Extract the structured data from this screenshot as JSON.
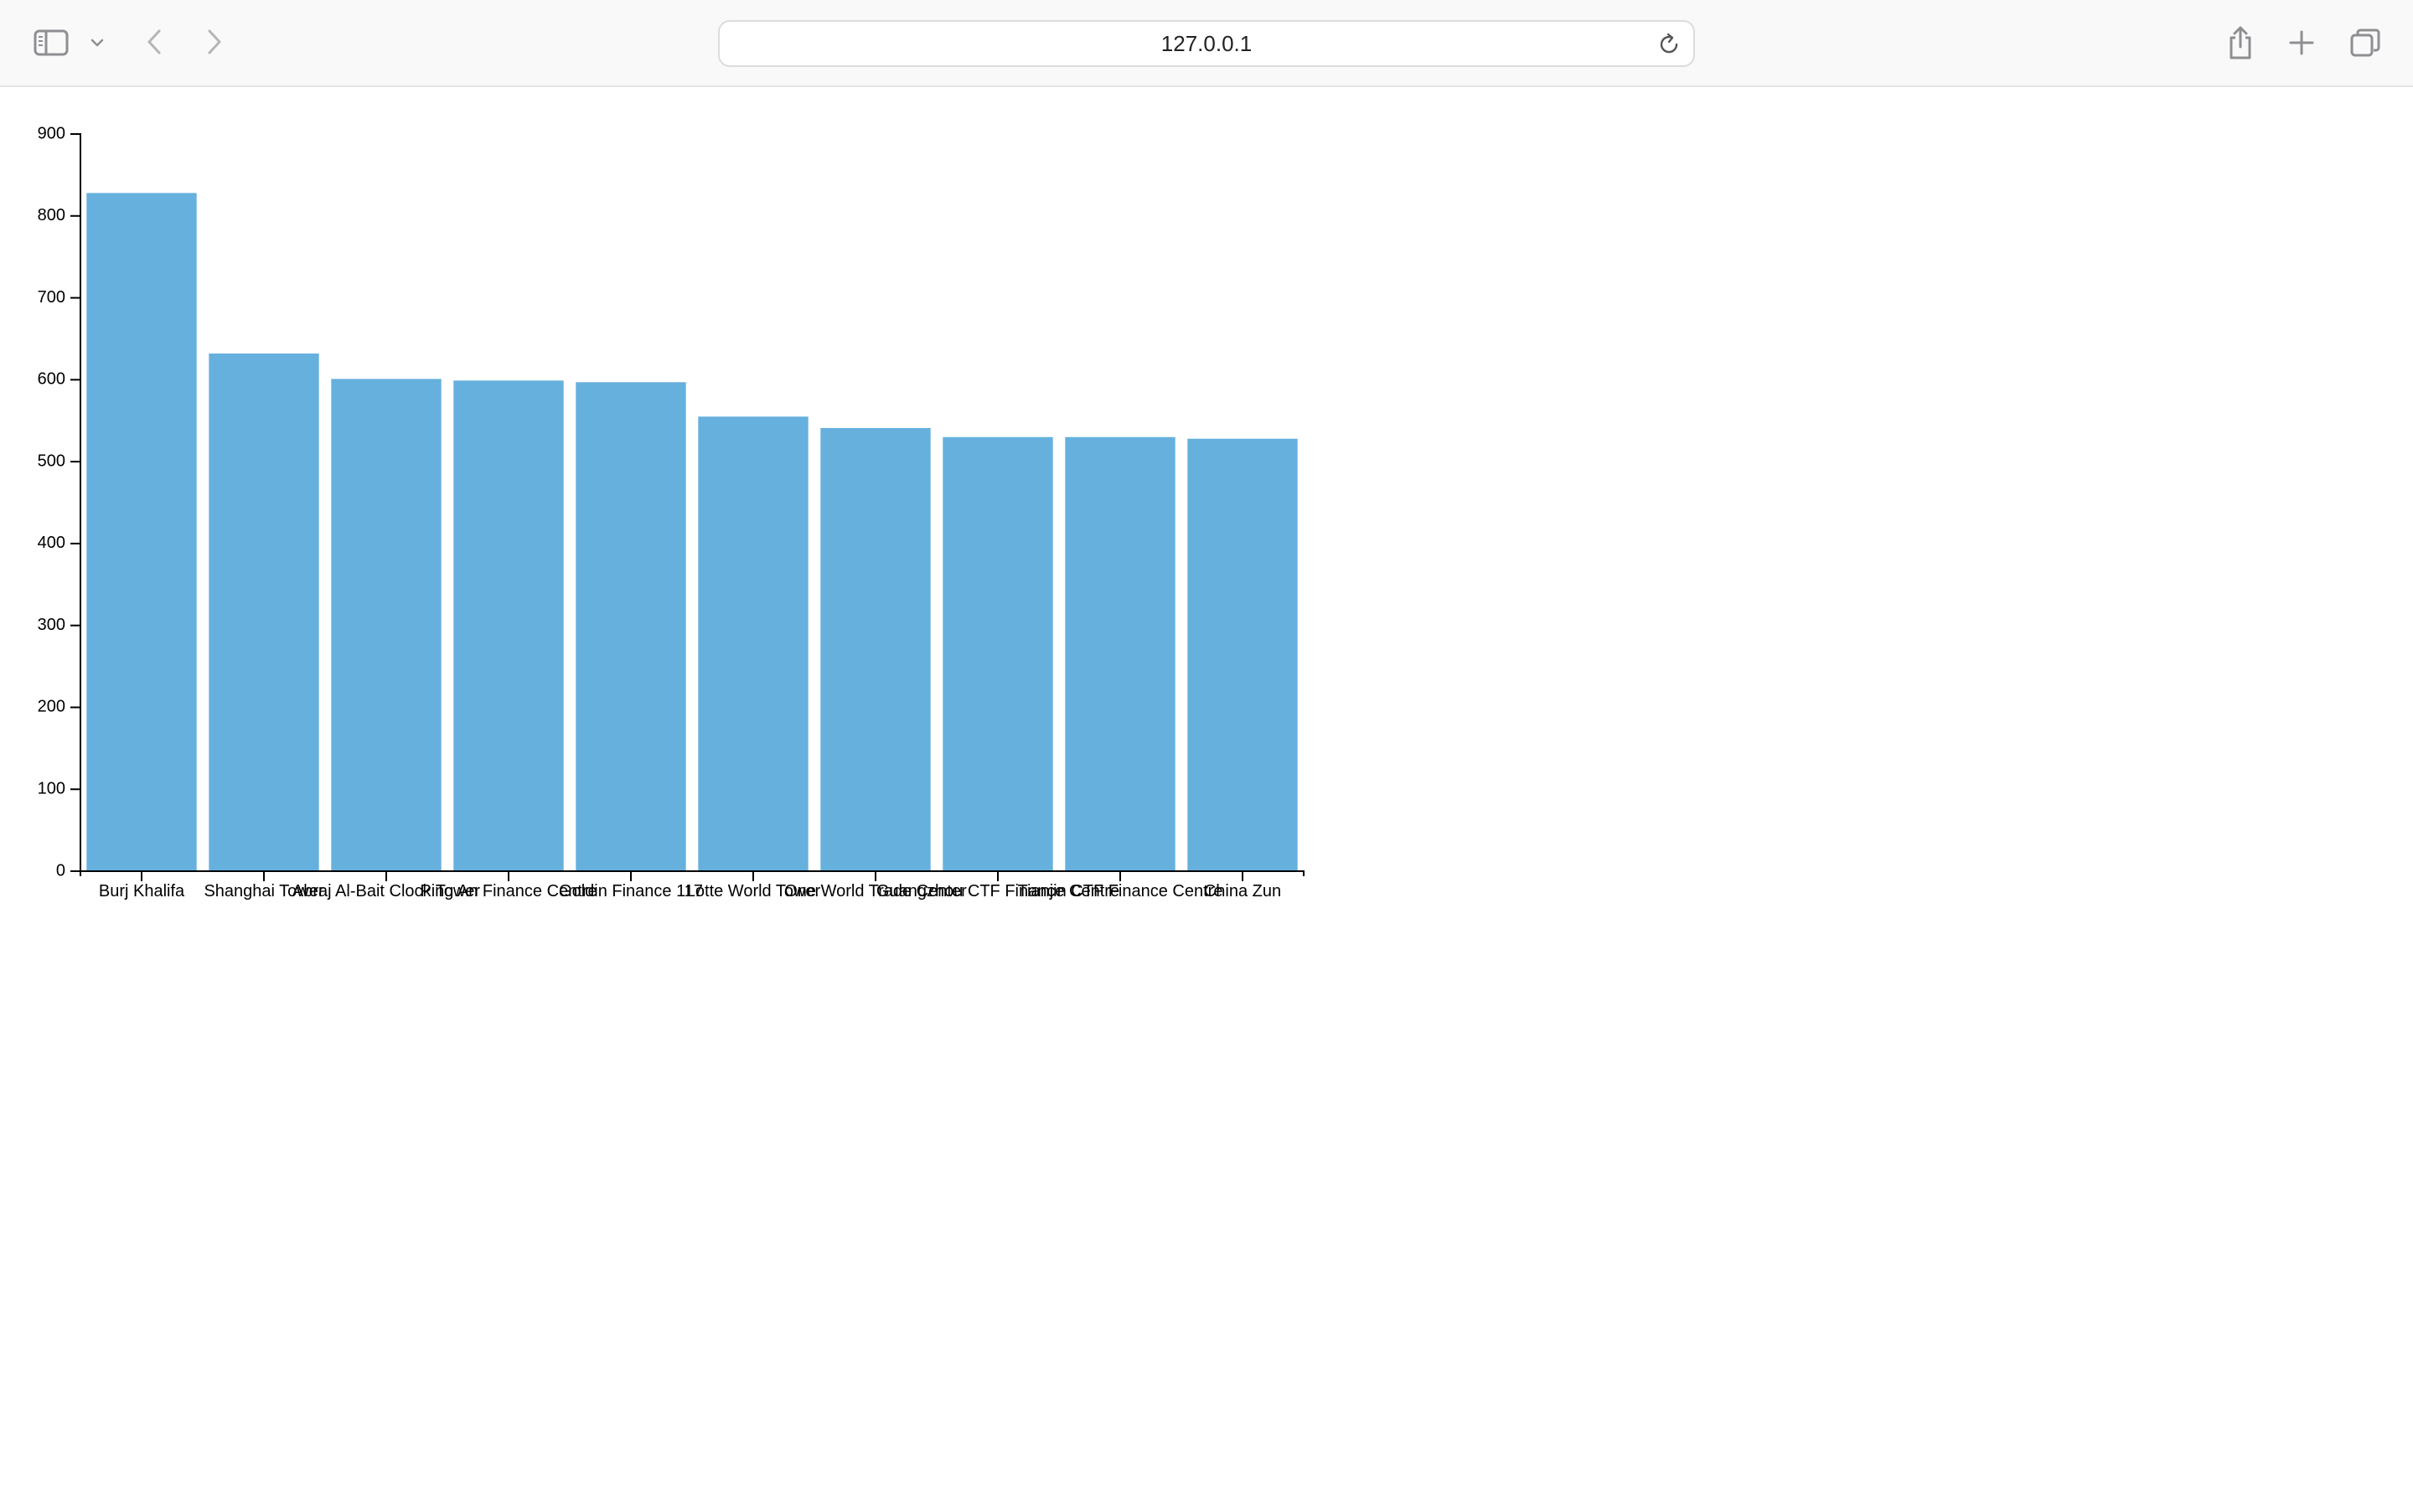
{
  "browser": {
    "address": "127.0.0.1"
  },
  "colors": {
    "bar": "#66b0de",
    "axis": "#000000",
    "toolbar_icon": "#8e8e93"
  },
  "icons": {
    "sidebar": "sidebar-icon",
    "chevron": "chevron-down-icon",
    "back": "back-arrow-icon",
    "forward": "forward-arrow-icon",
    "reload": "reload-icon",
    "share": "share-icon",
    "new_tab": "plus-icon",
    "tabs": "tab-overview-icon"
  },
  "chart_data": {
    "type": "bar",
    "categories": [
      "Burj Khalifa",
      "Shanghai Tower",
      "Abraj Al-Bait Clock Tower",
      "Ping An Finance Centre",
      "Goldin Finance 117",
      "Lotte World Tower",
      "One World Trade Center",
      "Guangzhou CTF Finance Centre",
      "Tianjin CTF Finance Centre",
      "China Zun"
    ],
    "values": [
      828,
      632,
      601,
      599,
      597,
      555,
      541,
      530,
      530,
      528
    ],
    "ylim": [
      0,
      900
    ],
    "yticks": [
      0,
      100,
      200,
      300,
      400,
      500,
      600,
      700,
      800,
      900
    ],
    "title": "",
    "xlabel": "",
    "ylabel": "",
    "grid": false,
    "legend": "none"
  }
}
